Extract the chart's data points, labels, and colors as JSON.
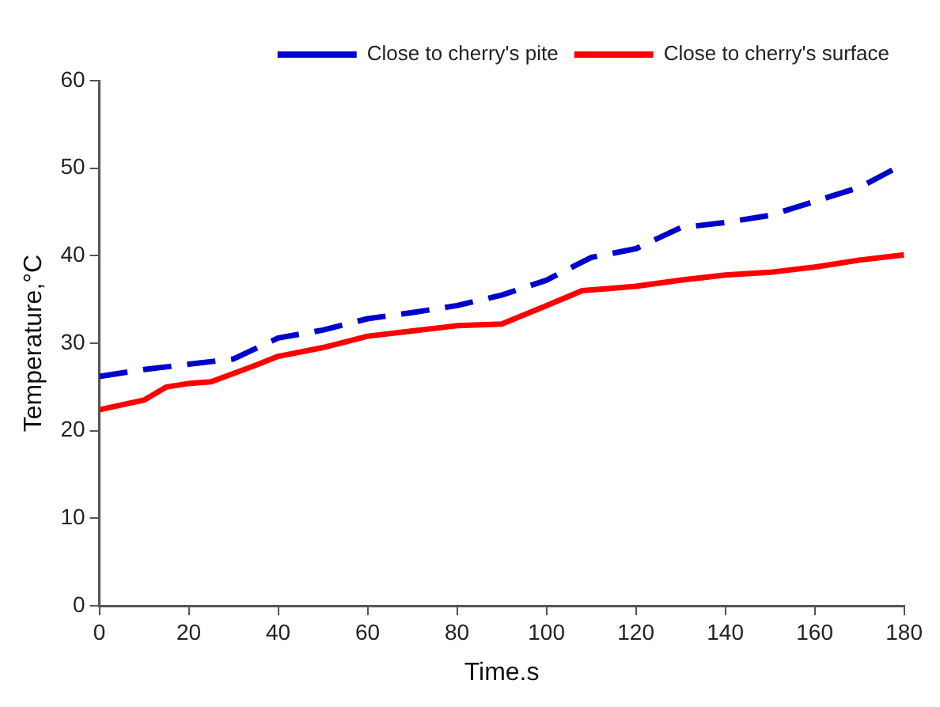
{
  "chart_data": {
    "type": "line",
    "xlabel": "Time.s",
    "ylabel": "Temperature,°C",
    "xlim": [
      0,
      180
    ],
    "xticks": [
      0,
      20,
      40,
      60,
      80,
      100,
      120,
      140,
      160,
      180
    ],
    "ylim": [
      0,
      60
    ],
    "yticks": [
      0,
      10,
      20,
      30,
      40,
      50,
      60
    ],
    "grid": false,
    "legend": "top right",
    "marker": "none",
    "series": [
      {
        "name": "Close to cherry's pite",
        "color": "#0000cc",
        "line_style": "dashed",
        "x": [
          0,
          10,
          20,
          30,
          40,
          50,
          60,
          70,
          80,
          90,
          100,
          110,
          120,
          130,
          140,
          150,
          160,
          170,
          180
        ],
        "values": [
          26.2,
          27,
          27.6,
          28.2,
          30.6,
          31.5,
          32.8,
          33.5,
          34.3,
          35.5,
          37.2,
          39.8,
          40.8,
          43.2,
          43.8,
          44.6,
          46.2,
          47.8,
          50.5
        ]
      },
      {
        "name": "Close to cherry's surface",
        "color": "#ff0000",
        "line_style": "solid",
        "x": [
          0,
          10,
          15,
          20,
          25,
          35,
          40,
          50,
          60,
          70,
          80,
          90,
          100,
          108,
          120,
          130,
          140,
          150,
          160,
          170,
          180
        ],
        "values": [
          22.4,
          23.5,
          25,
          25.4,
          25.6,
          27.5,
          28.5,
          29.5,
          30.8,
          31.4,
          32,
          32.2,
          34.3,
          36,
          36.5,
          37.2,
          37.8,
          38.1,
          38.7,
          39.5,
          40.1
        ]
      }
    ]
  }
}
